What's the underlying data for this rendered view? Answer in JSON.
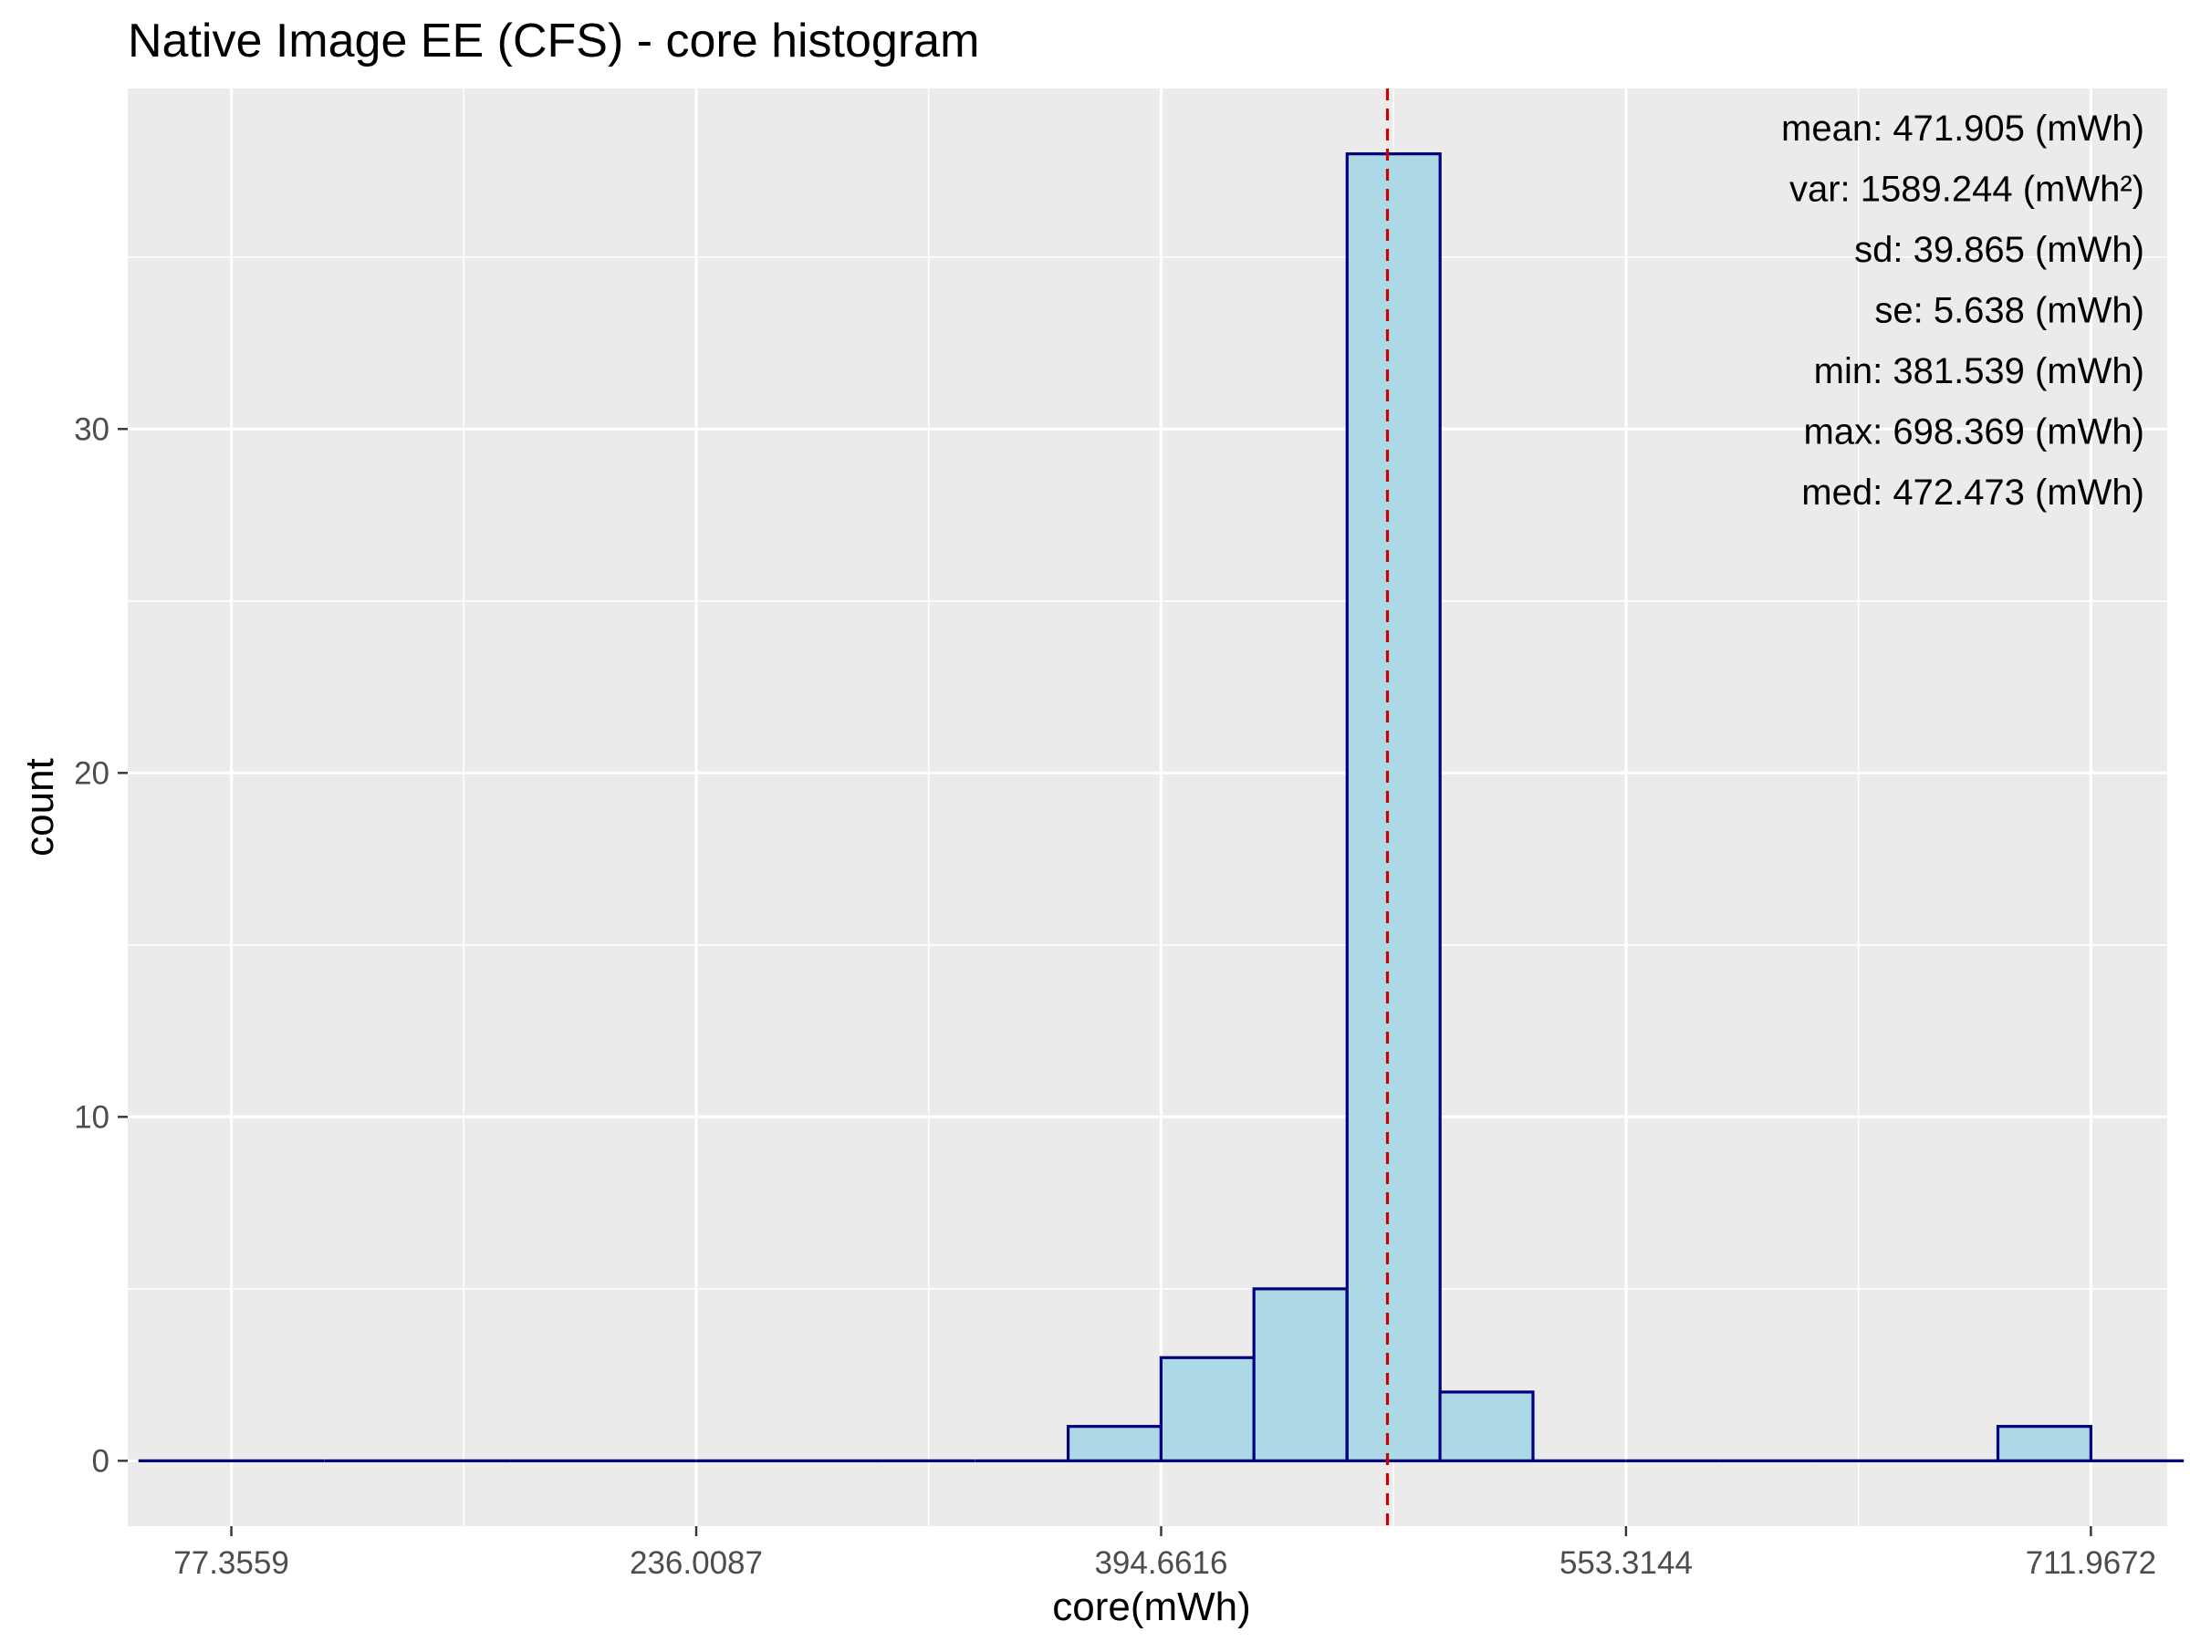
{
  "chart_data": {
    "type": "bar",
    "title": "Native Image EE (CFS) - core histogram",
    "xlabel": "core(mWh)",
    "ylabel": "count",
    "x_ticks": [
      "77.3559",
      "236.0087",
      "394.6616",
      "553.3144",
      "711.9672"
    ],
    "x_tick_values": [
      77.3559,
      236.0087,
      394.6616,
      553.3144,
      711.9672
    ],
    "xlim": [
      42,
      738
    ],
    "y_ticks": [
      0,
      10,
      20,
      30
    ],
    "ylim": [
      -1.9,
      39.9
    ],
    "bin_width": 31.73,
    "bins": [
      {
        "x": 61.5,
        "count": 0
      },
      {
        "x": 93.2,
        "count": 0
      },
      {
        "x": 125.0,
        "count": 0
      },
      {
        "x": 156.7,
        "count": 0
      },
      {
        "x": 188.4,
        "count": 0
      },
      {
        "x": 220.1,
        "count": 0
      },
      {
        "x": 251.9,
        "count": 0
      },
      {
        "x": 283.6,
        "count": 0
      },
      {
        "x": 315.3,
        "count": 0
      },
      {
        "x": 347.1,
        "count": 0
      },
      {
        "x": 378.8,
        "count": 1
      },
      {
        "x": 410.5,
        "count": 3
      },
      {
        "x": 442.2,
        "count": 5
      },
      {
        "x": 474.0,
        "count": 38
      },
      {
        "x": 505.7,
        "count": 2
      },
      {
        "x": 537.4,
        "count": 0
      },
      {
        "x": 569.2,
        "count": 0
      },
      {
        "x": 600.9,
        "count": 0
      },
      {
        "x": 632.6,
        "count": 0
      },
      {
        "x": 664.3,
        "count": 0
      },
      {
        "x": 696.1,
        "count": 1
      },
      {
        "x": 727.8,
        "count": 0
      }
    ],
    "mean_line": 471.905,
    "stats": [
      "mean: 471.905 (mWh)",
      "var: 1589.244 (mWh²)",
      "sd: 39.865 (mWh)",
      "se: 5.638 (mWh)",
      "min: 381.539 (mWh)",
      "max: 698.369 (mWh)",
      "med: 472.473 (mWh)"
    ],
    "grid": true,
    "colors": {
      "panel": "#ebebeb",
      "grid": "#ffffff",
      "bar_fill": "#add8e6",
      "bar_stroke": "#000080",
      "mean_line": "#cc0000"
    }
  }
}
